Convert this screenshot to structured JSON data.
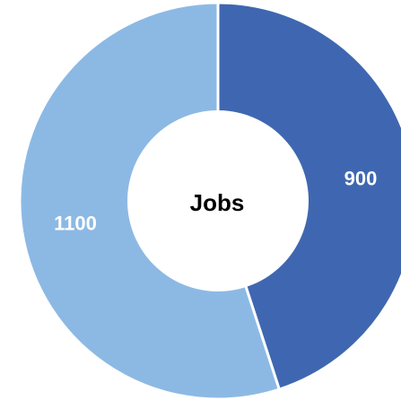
{
  "chart_data": {
    "type": "pie",
    "variant": "donut",
    "center_label": "Jobs",
    "slices": [
      {
        "value": 900,
        "label": "900",
        "color": "#3f67b1"
      },
      {
        "value": 1100,
        "label": "1100",
        "color": "#8cb9e4"
      }
    ],
    "legend": "none"
  }
}
